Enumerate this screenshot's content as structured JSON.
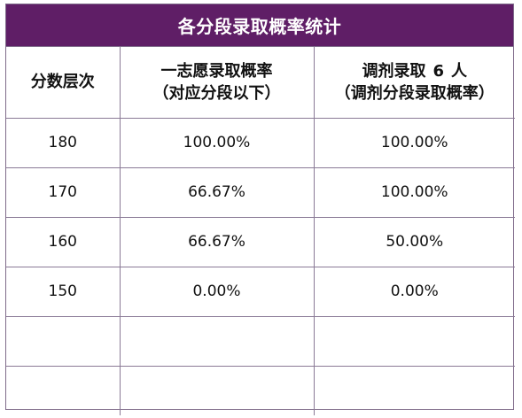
{
  "title": "各分段录取概率统计",
  "headers": {
    "col1": "分数层次",
    "col2_line1": "一志愿录取概率",
    "col2_line2": "（对应分段以下）",
    "col3_line1_prefix": "调剂录取",
    "col3_line1_number": "6",
    "col3_line1_suffix": "人",
    "col3_line2": "（调剂分段录取概率）"
  },
  "rows": [
    {
      "score": "180",
      "first_choice": "100.00%",
      "adjusted": "100.00%"
    },
    {
      "score": "170",
      "first_choice": "66.67%",
      "adjusted": "100.00%"
    },
    {
      "score": "160",
      "first_choice": "66.67%",
      "adjusted": "50.00%"
    },
    {
      "score": "150",
      "first_choice": "0.00%",
      "adjusted": "0.00%"
    },
    {
      "score": "",
      "first_choice": "",
      "adjusted": ""
    },
    {
      "score": "",
      "first_choice": "",
      "adjusted": ""
    }
  ],
  "colors": {
    "title_bg": "#5f1e66",
    "border": "#8a7a96"
  }
}
